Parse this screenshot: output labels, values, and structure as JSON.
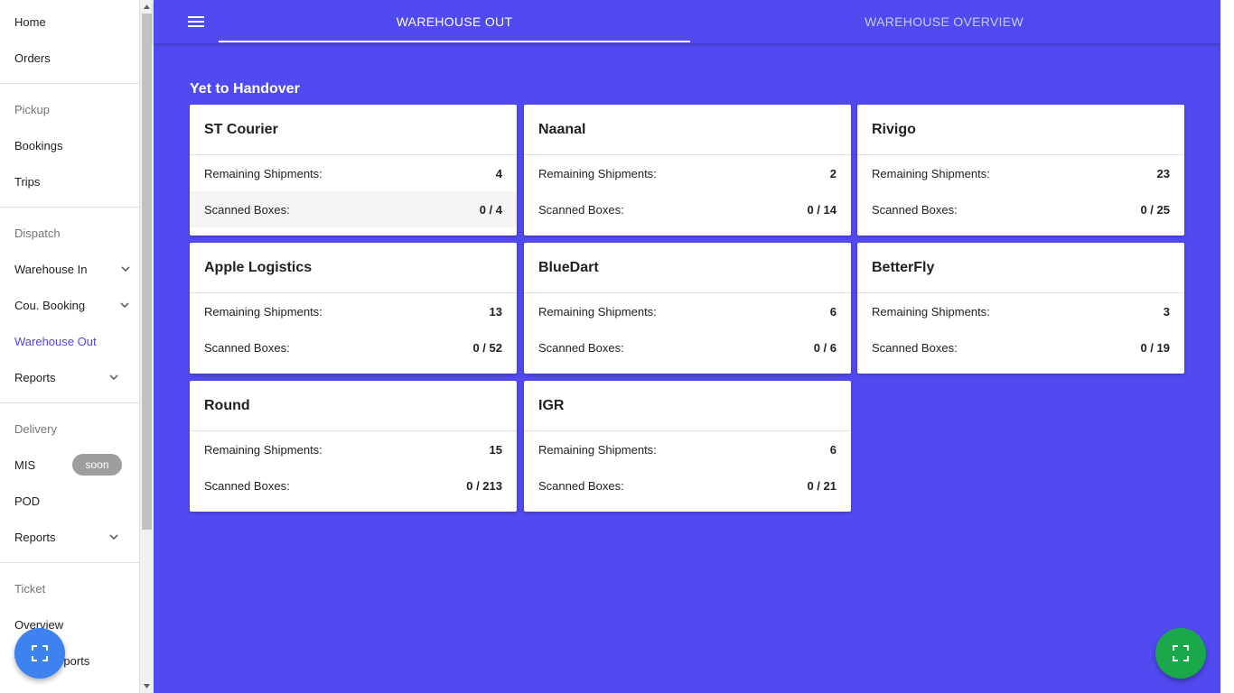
{
  "sidebar": {
    "home": "Home",
    "orders": "Orders",
    "pickup_header": "Pickup",
    "bookings": "Bookings",
    "trips": "Trips",
    "dispatch_header": "Dispatch",
    "warehouse_in": "Warehouse In",
    "cou_booking": "Cou. Booking",
    "warehouse_out": "Warehouse Out",
    "dispatch_reports": "Reports",
    "delivery_header": "Delivery",
    "mis": "MIS",
    "mis_badge": "soon",
    "pod": "POD",
    "delivery_reports": "Reports",
    "ticket_header": "Ticket",
    "overview": "Overview",
    "ticket_reports": "Ticket Reports"
  },
  "tabs": {
    "warehouse_out": "WAREHOUSE OUT",
    "warehouse_overview": "WAREHOUSE OVERVIEW"
  },
  "section_title": "Yet to Handover",
  "labels": {
    "remaining": "Remaining Shipments:",
    "scanned": "Scanned Boxes:"
  },
  "cards": [
    {
      "name": "ST Courier",
      "remaining": "4",
      "scanned": "0 / 4"
    },
    {
      "name": "Naanal",
      "remaining": "2",
      "scanned": "0 / 14"
    },
    {
      "name": "Rivigo",
      "remaining": "23",
      "scanned": "0 / 25"
    },
    {
      "name": "Apple Logistics",
      "remaining": "13",
      "scanned": "0 / 52"
    },
    {
      "name": "BlueDart",
      "remaining": "6",
      "scanned": "0 / 6"
    },
    {
      "name": "BetterFly",
      "remaining": "3",
      "scanned": "0 / 19"
    },
    {
      "name": "Round",
      "remaining": "15",
      "scanned": "0 / 213"
    },
    {
      "name": "IGR",
      "remaining": "6",
      "scanned": "0 / 21"
    }
  ],
  "colors": {
    "primary": "#514af0",
    "active_link": "#4f46e5",
    "fab_blue": "#3d82f0",
    "fab_green": "#1ba84a",
    "badge_gray": "#9e9e9e"
  },
  "icons": {
    "menu": "menu-icon",
    "chevron": "chevron-down-icon",
    "scan": "scan-icon"
  }
}
